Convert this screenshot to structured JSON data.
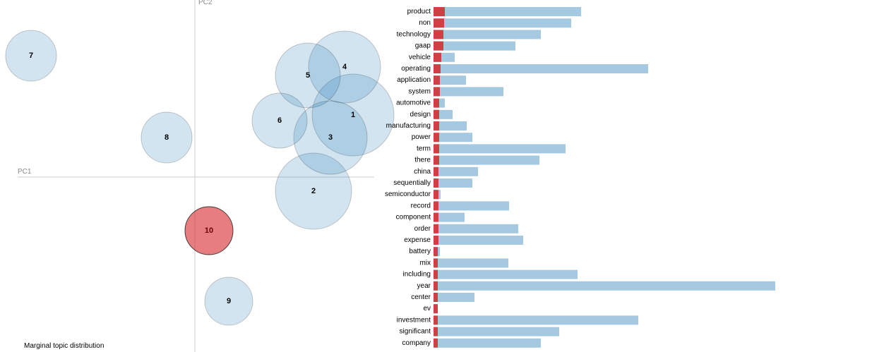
{
  "colors": {
    "bubble": "#1f77b4",
    "selected_bubble": "#d62728",
    "overall_bar": "#1f77b4",
    "topic_bar": "#d62728",
    "axis": "#cccccc"
  },
  "footer": {
    "caption": "Marginal topic distribution"
  },
  "chart_data": [
    {
      "type": "scatter",
      "axes": {
        "x_label": "PC1",
        "y_label": "PC2"
      },
      "selected_topic": "10",
      "topics": [
        {
          "label": "1",
          "x": 0.56,
          "y": 0.22,
          "r": 58
        },
        {
          "label": "2",
          "x": 0.42,
          "y": -0.05,
          "r": 54
        },
        {
          "label": "3",
          "x": 0.48,
          "y": 0.14,
          "r": 52
        },
        {
          "label": "4",
          "x": 0.53,
          "y": 0.39,
          "r": 51
        },
        {
          "label": "5",
          "x": 0.4,
          "y": 0.36,
          "r": 46
        },
        {
          "label": "6",
          "x": 0.3,
          "y": 0.2,
          "r": 39
        },
        {
          "label": "7",
          "x": -0.58,
          "y": 0.43,
          "r": 36
        },
        {
          "label": "8",
          "x": -0.1,
          "y": 0.14,
          "r": 36
        },
        {
          "label": "9",
          "x": 0.12,
          "y": -0.44,
          "r": 34
        },
        {
          "label": "10",
          "x": 0.05,
          "y": -0.19,
          "r": 34
        }
      ]
    },
    {
      "type": "bar",
      "orientation": "horizontal",
      "series": [
        {
          "name": "overall"
        },
        {
          "name": "topic"
        }
      ],
      "terms": [
        {
          "term": "product",
          "overall": 209,
          "topic": 16
        },
        {
          "term": "non",
          "overall": 195,
          "topic": 15
        },
        {
          "term": "technology",
          "overall": 152,
          "topic": 14
        },
        {
          "term": "gaap",
          "overall": 116,
          "topic": 14
        },
        {
          "term": "vehicle",
          "overall": 30,
          "topic": 11
        },
        {
          "term": "operating",
          "overall": 304,
          "topic": 10
        },
        {
          "term": "application",
          "overall": 46,
          "topic": 9
        },
        {
          "term": "system",
          "overall": 99,
          "topic": 9
        },
        {
          "term": "automotive",
          "overall": 16,
          "topic": 8
        },
        {
          "term": "design",
          "overall": 27,
          "topic": 8
        },
        {
          "term": "manufacturing",
          "overall": 47,
          "topic": 8
        },
        {
          "term": "power",
          "overall": 55,
          "topic": 8
        },
        {
          "term": "term",
          "overall": 187,
          "topic": 8
        },
        {
          "term": "there",
          "overall": 150,
          "topic": 8
        },
        {
          "term": "china",
          "overall": 63,
          "topic": 7
        },
        {
          "term": "sequentially",
          "overall": 55,
          "topic": 7
        },
        {
          "term": "semiconductor",
          "overall": 10,
          "topic": 7
        },
        {
          "term": "record",
          "overall": 107,
          "topic": 7
        },
        {
          "term": "component",
          "overall": 44,
          "topic": 7
        },
        {
          "term": "order",
          "overall": 120,
          "topic": 7
        },
        {
          "term": "expense",
          "overall": 127,
          "topic": 7
        },
        {
          "term": "battery",
          "overall": 9,
          "topic": 6
        },
        {
          "term": "mix",
          "overall": 106,
          "topic": 6
        },
        {
          "term": "including",
          "overall": 204,
          "topic": 6
        },
        {
          "term": "year",
          "overall": 484,
          "topic": 6
        },
        {
          "term": "center",
          "overall": 58,
          "topic": 6
        },
        {
          "term": "ev",
          "overall": 6,
          "topic": 6
        },
        {
          "term": "investment",
          "overall": 290,
          "topic": 6
        },
        {
          "term": "significant",
          "overall": 178,
          "topic": 6
        },
        {
          "term": "company",
          "overall": 152,
          "topic": 6
        }
      ]
    }
  ]
}
